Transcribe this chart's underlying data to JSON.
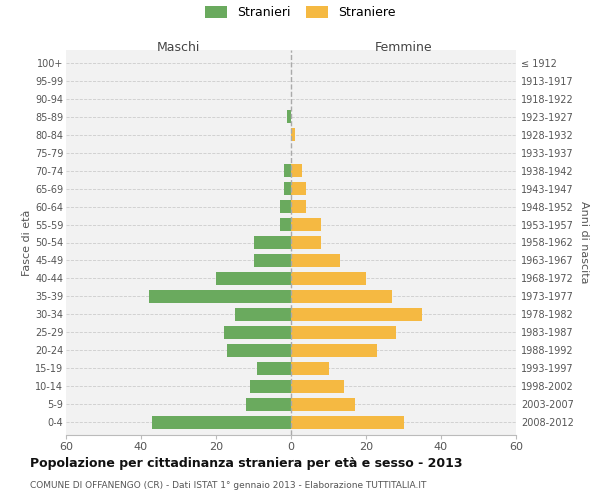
{
  "age_groups": [
    "0-4",
    "5-9",
    "10-14",
    "15-19",
    "20-24",
    "25-29",
    "30-34",
    "35-39",
    "40-44",
    "45-49",
    "50-54",
    "55-59",
    "60-64",
    "65-69",
    "70-74",
    "75-79",
    "80-84",
    "85-89",
    "90-94",
    "95-99",
    "100+"
  ],
  "birth_years": [
    "2008-2012",
    "2003-2007",
    "1998-2002",
    "1993-1997",
    "1988-1992",
    "1983-1987",
    "1978-1982",
    "1973-1977",
    "1968-1972",
    "1963-1967",
    "1958-1962",
    "1953-1957",
    "1948-1952",
    "1943-1947",
    "1938-1942",
    "1933-1937",
    "1928-1932",
    "1923-1927",
    "1918-1922",
    "1913-1917",
    "≤ 1912"
  ],
  "males": [
    37,
    12,
    11,
    9,
    17,
    18,
    15,
    38,
    20,
    10,
    10,
    3,
    3,
    2,
    2,
    0,
    0,
    1,
    0,
    0,
    0
  ],
  "females": [
    30,
    17,
    14,
    10,
    23,
    28,
    35,
    27,
    20,
    13,
    8,
    8,
    4,
    4,
    3,
    0,
    1,
    0,
    0,
    0,
    0
  ],
  "male_color": "#6aaa5e",
  "female_color": "#f5b942",
  "background_color": "#f2f2f2",
  "grid_color": "#cccccc",
  "title": "Popolazione per cittadinanza straniera per età e sesso - 2013",
  "subtitle": "COMUNE DI OFFANENGO (CR) - Dati ISTAT 1° gennaio 2013 - Elaborazione TUTTITALIA.IT",
  "xlabel_left": "Maschi",
  "xlabel_right": "Femmine",
  "ylabel_left": "Fasce di età",
  "ylabel_right": "Anni di nascita",
  "legend_males": "Stranieri",
  "legend_females": "Straniere",
  "xlim": 60
}
